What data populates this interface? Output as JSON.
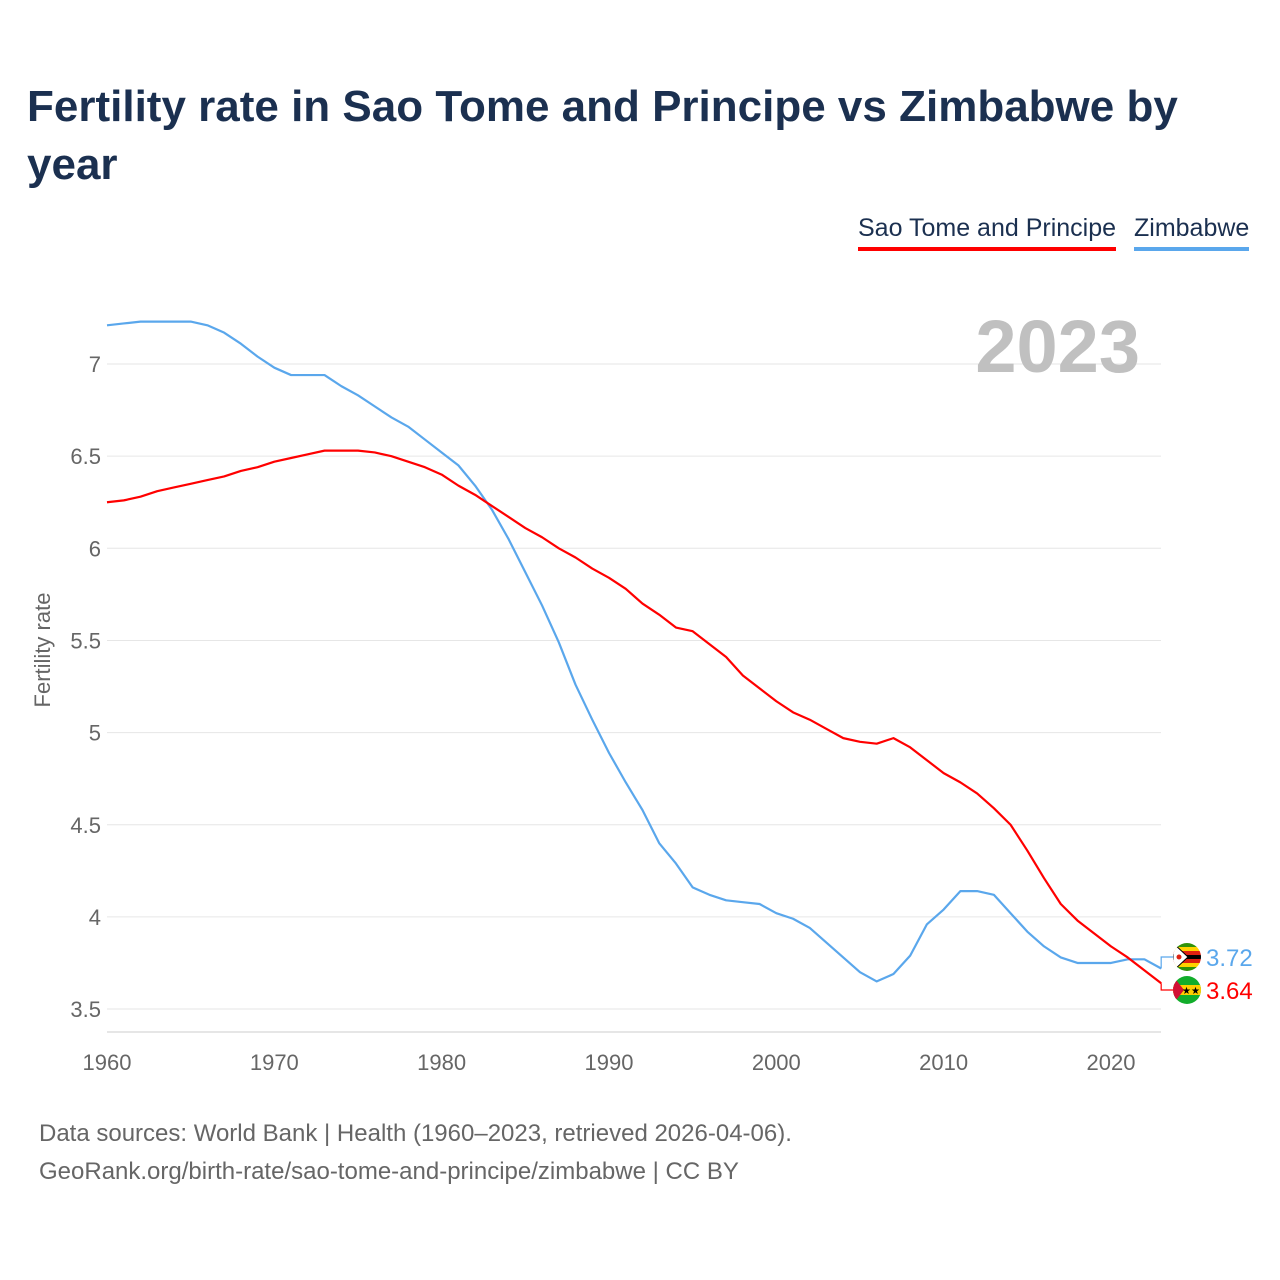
{
  "title": "Fertility rate in Sao Tome and Principe vs Zimbabwe by year",
  "footer": {
    "line1": "Data sources: World Bank | Health (1960–2023, retrieved 2026-04-06).",
    "line2": "GeoRank.org/birth-rate/sao-tome-and-principe/zimbabwe | CC BY"
  },
  "chart_data": {
    "type": "line",
    "title": "Fertility rate in Sao Tome and Principe vs Zimbabwe by year",
    "xlabel": "",
    "ylabel": "Fertility rate",
    "year_label": "2023",
    "xlim": [
      1960,
      2023
    ],
    "ylim": [
      3.4,
      7.3
    ],
    "x_ticks": [
      1960,
      1970,
      1980,
      1990,
      2000,
      2010,
      2020
    ],
    "y_ticks": [
      3.5,
      4,
      4.5,
      5,
      5.5,
      6,
      6.5,
      7
    ],
    "grid": true,
    "legend_position": "top-right",
    "x_start": 1960,
    "series": [
      {
        "name": "Sao Tome and Principe",
        "color": "#ff0000",
        "end_label": "3.64",
        "flag": "sao-tome-and-principe-flag",
        "values": [
          6.25,
          6.26,
          6.28,
          6.31,
          6.33,
          6.35,
          6.37,
          6.39,
          6.42,
          6.44,
          6.47,
          6.49,
          6.51,
          6.53,
          6.53,
          6.53,
          6.52,
          6.5,
          6.47,
          6.44,
          6.4,
          6.34,
          6.29,
          6.23,
          6.17,
          6.11,
          6.06,
          6.0,
          5.95,
          5.89,
          5.84,
          5.78,
          5.7,
          5.64,
          5.57,
          5.55,
          5.48,
          5.41,
          5.31,
          5.24,
          5.17,
          5.11,
          5.07,
          5.02,
          4.97,
          4.95,
          4.94,
          4.97,
          4.92,
          4.85,
          4.78,
          4.73,
          4.67,
          4.59,
          4.5,
          4.36,
          4.21,
          4.07,
          3.98,
          3.91,
          3.84,
          3.78,
          3.71,
          3.64
        ]
      },
      {
        "name": "Zimbabwe",
        "color": "#5aa7ec",
        "end_label": "3.72",
        "flag": "zimbabwe-flag",
        "values": [
          7.21,
          7.22,
          7.23,
          7.23,
          7.23,
          7.23,
          7.21,
          7.17,
          7.11,
          7.04,
          6.98,
          6.94,
          6.94,
          6.94,
          6.88,
          6.83,
          6.77,
          6.71,
          6.66,
          6.59,
          6.52,
          6.45,
          6.34,
          6.21,
          6.05,
          5.87,
          5.69,
          5.49,
          5.26,
          5.07,
          4.89,
          4.73,
          4.58,
          4.4,
          4.29,
          4.16,
          4.12,
          4.09,
          4.08,
          4.07,
          4.02,
          3.99,
          3.94,
          3.86,
          3.78,
          3.7,
          3.65,
          3.69,
          3.79,
          3.96,
          4.04,
          4.14,
          4.14,
          4.12,
          4.02,
          3.92,
          3.84,
          3.78,
          3.75,
          3.75,
          3.75,
          3.77,
          3.77,
          3.72
        ]
      }
    ]
  }
}
